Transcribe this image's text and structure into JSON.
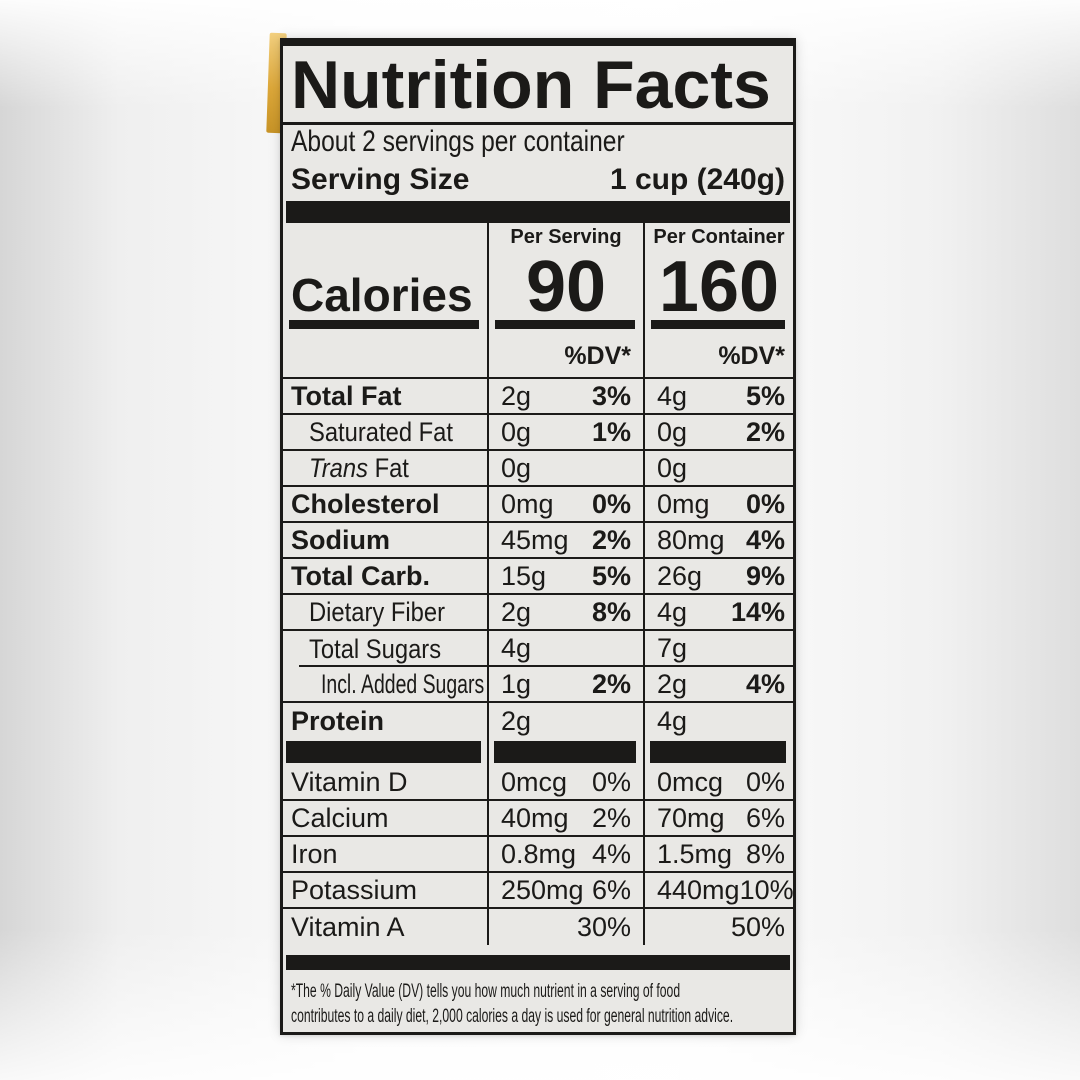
{
  "label": {
    "title": "Nutrition Facts",
    "servings_per_container": "About 2 servings per container",
    "serving_size": {
      "label": "Serving Size",
      "value": "1 cup (240g)"
    },
    "calories": {
      "label": "Calories",
      "per_serving_header": "Per Serving",
      "per_serving_value": "90",
      "per_container_header": "Per Container",
      "per_container_value": "160",
      "dv_header": "%DV*"
    },
    "nutrients": [
      {
        "label": "Total Fat",
        "serving_amount": "2g",
        "serving_dv": "3%",
        "container_amount": "4g",
        "container_dv": "5%"
      },
      {
        "label": "Saturated Fat",
        "serving_amount": "0g",
        "serving_dv": "1%",
        "container_amount": "0g",
        "container_dv": "2%"
      },
      {
        "label_italic": "Trans",
        "label": " Fat",
        "serving_amount": "0g",
        "serving_dv": "",
        "container_amount": "0g",
        "container_dv": ""
      },
      {
        "label": "Cholesterol",
        "serving_amount": "0mg",
        "serving_dv": "0%",
        "container_amount": "0mg",
        "container_dv": "0%"
      },
      {
        "label": "Sodium",
        "serving_amount": "45mg",
        "serving_dv": "2%",
        "container_amount": "80mg",
        "container_dv": "4%"
      },
      {
        "label": "Total Carb.",
        "serving_amount": "15g",
        "serving_dv": "5%",
        "container_amount": "26g",
        "container_dv": "9%"
      },
      {
        "label": "Dietary Fiber",
        "serving_amount": "2g",
        "serving_dv": "8%",
        "container_amount": "4g",
        "container_dv": "14%"
      },
      {
        "label": "Total Sugars",
        "serving_amount": "4g",
        "serving_dv": "",
        "container_amount": "7g",
        "container_dv": ""
      },
      {
        "label": "Incl. Added Sugars",
        "serving_amount": "1g",
        "serving_dv": "2%",
        "container_amount": "2g",
        "container_dv": "4%"
      },
      {
        "label": "Protein",
        "serving_amount": "2g",
        "serving_dv": "",
        "container_amount": "4g",
        "container_dv": ""
      }
    ],
    "micronutrients": [
      {
        "label": "Vitamin D",
        "serving_amount": "0mcg",
        "serving_dv": "0%",
        "container_amount": "0mcg",
        "container_dv": "0%"
      },
      {
        "label": "Calcium",
        "serving_amount": "40mg",
        "serving_dv": "2%",
        "container_amount": "70mg",
        "container_dv": "6%"
      },
      {
        "label": "Iron",
        "serving_amount": "0.8mg",
        "serving_dv": "4%",
        "container_amount": "1.5mg",
        "container_dv": "8%"
      },
      {
        "label": "Potassium",
        "serving_amount": "250mg",
        "serving_dv": "6%",
        "container_amount": "440mg",
        "container_dv": "10%"
      },
      {
        "label": "Vitamin A",
        "serving_amount": "",
        "serving_dv": "30%",
        "container_amount": "",
        "container_dv": "50%"
      }
    ],
    "footnote_lines": [
      "*The % Daily Value (DV) tells you how much nutrient in a serving of food",
      "contributes to a daily diet, 2,000 calories a day is used for general nutrition advice."
    ]
  },
  "colors": {
    "ink": "#1b1a18",
    "label_paper": "#e9e8e5",
    "can_edge_yellow": "#dda83a"
  }
}
